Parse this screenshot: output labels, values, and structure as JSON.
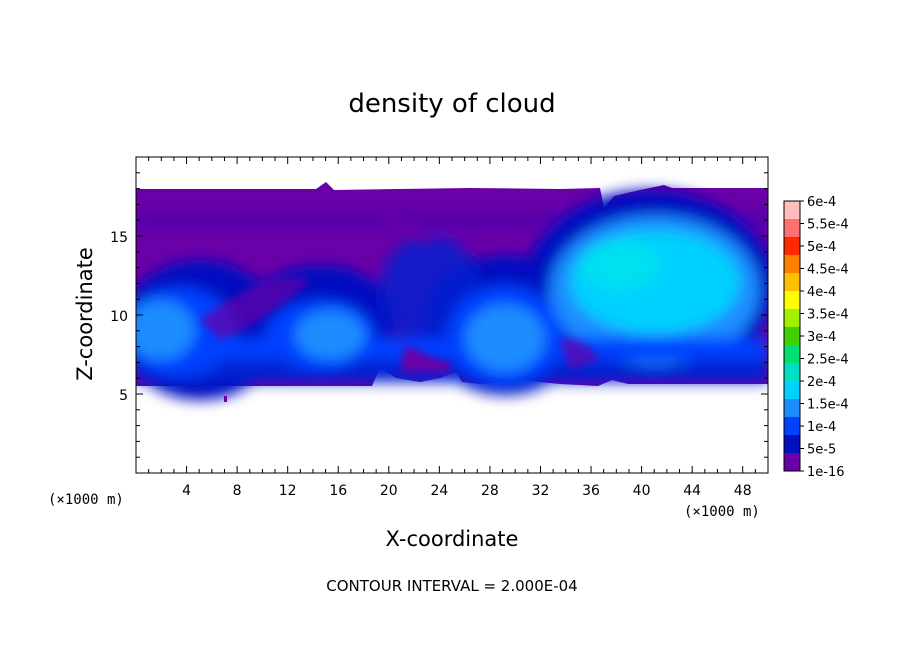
{
  "chart_data": {
    "type": "heatmap",
    "title": "density of cloud",
    "xlabel": "X-coordinate",
    "ylabel": "Z-coordinate",
    "x_unit": "(×1000 m)",
    "y_unit": "(×1000 m)",
    "xlim": [
      0,
      50
    ],
    "ylim": [
      0,
      20
    ],
    "x_ticks": [
      4,
      8,
      12,
      16,
      20,
      24,
      28,
      32,
      36,
      40,
      44,
      48
    ],
    "y_ticks": [
      5,
      10,
      15
    ],
    "contour_interval_text": "CONTOUR INTERVAL = 2.000E-04",
    "colorbar": {
      "labels": [
        "6e-4",
        "5.5e-4",
        "5e-4",
        "4.5e-4",
        "4e-4",
        "3.5e-4",
        "3e-4",
        "2.5e-4",
        "2e-4",
        "1.5e-4",
        "1e-4",
        "5e-5",
        "1e-16"
      ],
      "colors": [
        "#ffbdbd",
        "#ff7070",
        "#ff2a00",
        "#ff7f00",
        "#ffbf00",
        "#ffff00",
        "#a0f000",
        "#40d000",
        "#00e070",
        "#00e0c0",
        "#00d0ff",
        "#1a8cff",
        "#0040ff",
        "#0010c0",
        "#6a00a8"
      ]
    },
    "cloud_layer_z": [
      5.5,
      17.8
    ],
    "cloud_cells": [
      {
        "x": 3,
        "z": 10,
        "value": 0.00015
      },
      {
        "x": 15,
        "z": 10,
        "value": 0.00013
      },
      {
        "x": 29,
        "z": 9,
        "value": 0.00015
      },
      {
        "x": 41,
        "z": 12.5,
        "value": 0.00021
      }
    ]
  }
}
